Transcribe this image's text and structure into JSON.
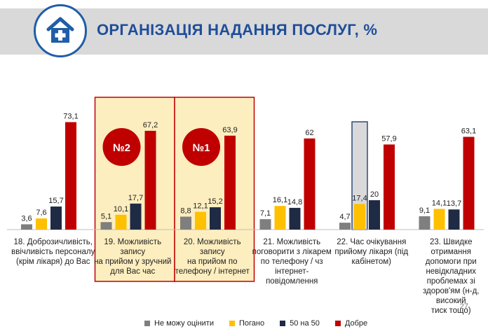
{
  "header": {
    "title": "ОРГАНІЗАЦІЯ НАДАННЯ ПОСЛУГ, %",
    "logo_icon": "house-medical-cross-icon"
  },
  "page_number": "27",
  "colors": {
    "grey": "#7f7f7f",
    "yellow": "#ffc000",
    "navy": "#1f2a44",
    "red": "#c00000",
    "highlight_fill": "#fdeebf",
    "highlight_border": "#c00000",
    "badge": "#c00000",
    "grey_box": "#d9d9d9",
    "grey_box_border": "#2e4a7a",
    "title": "#1f4e9a"
  },
  "chart_data": {
    "type": "bar",
    "categories": [
      "18. Доброзичливість, ввічливість персоналу (крім лікаря) до Вас",
      "19. Можливість запису на прийом у зручний для Вас час",
      "20. Можливість запису на прийом по телефону /  інтернет",
      "21. Можливість поговорити з лікарем по телефону / чз інтернет-повідомлення",
      "22. Час очікування прийому лікаря (під кабінетом)",
      "23. Швидке отримання допомоги при невідкладних проблемах зі здоров'ям (н-д, високий тиск тощо)"
    ],
    "category_lines": [
      [
        "18. Доброзичливість,",
        "ввічливість персоналу",
        "(крім лікаря) до Вас"
      ],
      [
        "19. Можливість запису",
        "на прийом у зручний",
        "для Вас час"
      ],
      [
        "20. Можливість запису",
        "на прийом по",
        "телефону /  інтернет"
      ],
      [
        "21. Можливість",
        "поговорити з лікарем",
        "по телефону / чз",
        "інтернет-повідомлення"
      ],
      [
        "22. Час очікування",
        "прийому лікаря (під",
        "кабінетом)"
      ],
      [
        "23. Швидке отримання",
        "допомоги при",
        "невідкладних",
        "проблемах зі",
        "здоров'ям (н-д, високий",
        "тиск тощо)"
      ]
    ],
    "series": [
      {
        "name": "Не можу оцінити",
        "values": [
          3.6,
          5.1,
          8.8,
          7.1,
          4.7,
          9.1
        ],
        "labels": [
          "3,6",
          "5,1",
          "8,8",
          "7,1",
          "4,7",
          "9,1"
        ]
      },
      {
        "name": "Погано",
        "values": [
          7.6,
          10.1,
          12.1,
          16.1,
          17.4,
          14.1
        ],
        "labels": [
          "7,6",
          "10,1",
          "12,1",
          "16,1",
          "17,4",
          "14,1"
        ]
      },
      {
        "name": "50 на 50",
        "values": [
          15.7,
          17.7,
          15.2,
          14.8,
          20,
          13.7
        ],
        "labels": [
          "15,7",
          "17,7",
          "15,2",
          "14,8",
          "20",
          "13,7"
        ]
      },
      {
        "name": "Добре",
        "values": [
          73.1,
          67.2,
          63.9,
          62,
          57.9,
          63.1
        ],
        "labels": [
          "73,1",
          "67,2",
          "63,9",
          "62",
          "57,9",
          "63,1"
        ]
      }
    ],
    "ylim": [
      0,
      80
    ],
    "grid": false,
    "legend_position": "bottom",
    "annotations": [
      {
        "category_index": 1,
        "text": "№2",
        "style": "red circle badge"
      },
      {
        "category_index": 2,
        "text": "№1",
        "style": "red circle badge"
      }
    ],
    "highlighted_categories": [
      1,
      2
    ],
    "outlined_bar": {
      "category_index": 4,
      "series_index": 1
    }
  }
}
